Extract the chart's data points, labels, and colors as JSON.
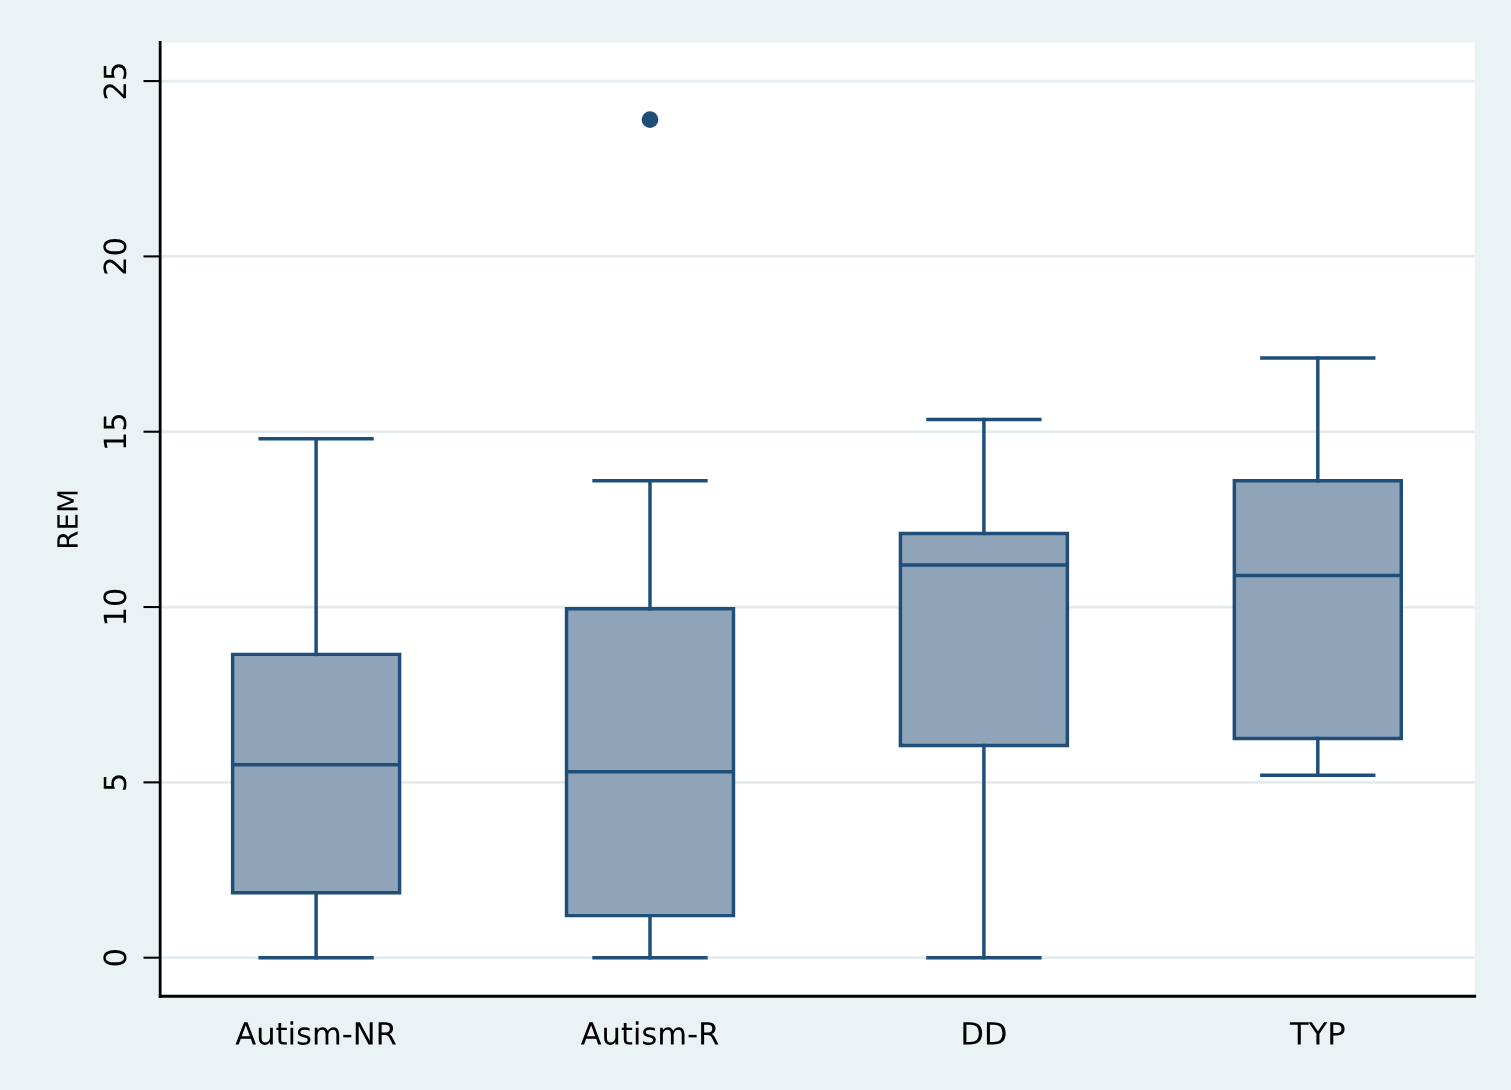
{
  "chart_data": {
    "type": "box",
    "ylabel": "REM",
    "categories": [
      "Autism-NR",
      "Autism-R",
      "DD",
      "TYP"
    ],
    "boxes": [
      {
        "low": 0,
        "q1": 1.85,
        "median": 5.5,
        "q3": 8.65,
        "high": 14.8
      },
      {
        "low": 0,
        "q1": 1.2,
        "median": 5.3,
        "q3": 9.95,
        "high": 13.6,
        "outliers": [
          23.9
        ]
      },
      {
        "low": 0,
        "q1": 6.05,
        "median": 11.2,
        "q3": 12.1,
        "high": 15.35
      },
      {
        "low": 5.2,
        "q1": 6.25,
        "median": 10.9,
        "q3": 13.6,
        "high": 17.1
      }
    ],
    "color": "#8fa4b8",
    "ylim": [
      -1.1,
      26.1
    ],
    "yticks": [
      0,
      5,
      10,
      15,
      20,
      25
    ],
    "grid": "y"
  }
}
